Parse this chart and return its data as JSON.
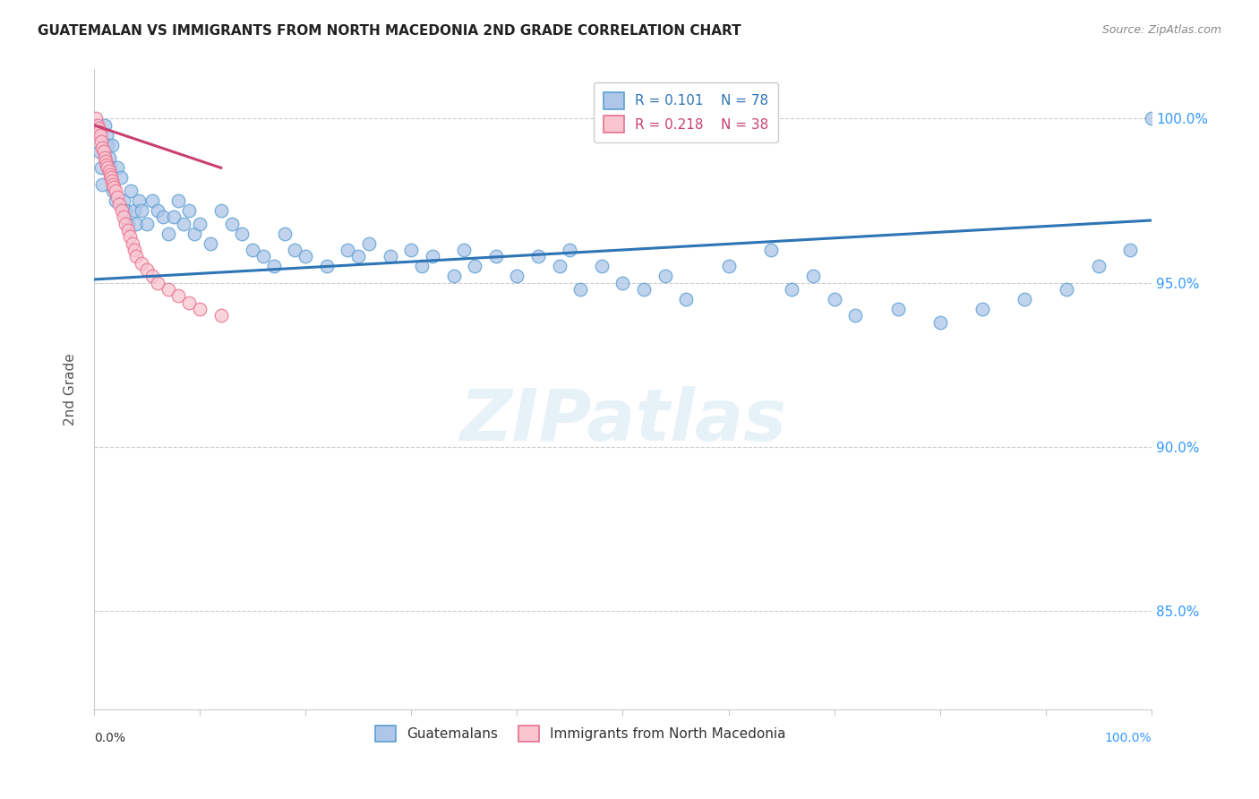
{
  "title": "GUATEMALAN VS IMMIGRANTS FROM NORTH MACEDONIA 2ND GRADE CORRELATION CHART",
  "source": "Source: ZipAtlas.com",
  "ylabel": "2nd Grade",
  "legend_blue_R": "0.101",
  "legend_blue_N": "78",
  "legend_pink_R": "0.218",
  "legend_pink_N": "38",
  "legend_label_blue": "Guatemalans",
  "legend_label_pink": "Immigrants from North Macedonia",
  "blue_color": "#aec6e8",
  "blue_edge_color": "#5a9fd4",
  "pink_color": "#f9c6d0",
  "pink_edge_color": "#e87090",
  "blue_line_color": "#2e75b6",
  "pink_line_color": "#c94070",
  "watermark_text": "ZIPatlas",
  "ytick_labels": [
    "100.0%",
    "95.0%",
    "90.0%",
    "85.0%"
  ],
  "ytick_values": [
    1.0,
    0.95,
    0.9,
    0.85
  ],
  "xlim": [
    0.0,
    1.0
  ],
  "ylim": [
    0.82,
    1.015
  ],
  "blue_scatter_x": [
    0.005,
    0.007,
    0.008,
    0.01,
    0.012,
    0.013,
    0.014,
    0.015,
    0.017,
    0.018,
    0.02,
    0.022,
    0.025,
    0.028,
    0.03,
    0.032,
    0.035,
    0.038,
    0.04,
    0.042,
    0.045,
    0.05,
    0.055,
    0.06,
    0.065,
    0.07,
    0.075,
    0.08,
    0.085,
    0.09,
    0.095,
    0.1,
    0.11,
    0.12,
    0.13,
    0.14,
    0.15,
    0.16,
    0.17,
    0.18,
    0.19,
    0.2,
    0.22,
    0.24,
    0.25,
    0.26,
    0.28,
    0.3,
    0.31,
    0.32,
    0.34,
    0.35,
    0.36,
    0.38,
    0.4,
    0.42,
    0.44,
    0.45,
    0.46,
    0.48,
    0.5,
    0.52,
    0.54,
    0.56,
    0.6,
    0.64,
    0.66,
    0.68,
    0.7,
    0.72,
    0.76,
    0.8,
    0.84,
    0.88,
    0.92,
    0.95,
    0.98,
    1.0
  ],
  "blue_scatter_y": [
    0.99,
    0.985,
    0.98,
    0.998,
    0.995,
    0.992,
    0.988,
    0.985,
    0.992,
    0.978,
    0.975,
    0.985,
    0.982,
    0.975,
    0.972,
    0.968,
    0.978,
    0.972,
    0.968,
    0.975,
    0.972,
    0.968,
    0.975,
    0.972,
    0.97,
    0.965,
    0.97,
    0.975,
    0.968,
    0.972,
    0.965,
    0.968,
    0.962,
    0.972,
    0.968,
    0.965,
    0.96,
    0.958,
    0.955,
    0.965,
    0.96,
    0.958,
    0.955,
    0.96,
    0.958,
    0.962,
    0.958,
    0.96,
    0.955,
    0.958,
    0.952,
    0.96,
    0.955,
    0.958,
    0.952,
    0.958,
    0.955,
    0.96,
    0.948,
    0.955,
    0.95,
    0.948,
    0.952,
    0.945,
    0.955,
    0.96,
    0.948,
    0.952,
    0.945,
    0.94,
    0.942,
    0.938,
    0.942,
    0.945,
    0.948,
    0.955,
    0.96,
    1.0
  ],
  "pink_scatter_x": [
    0.002,
    0.003,
    0.004,
    0.005,
    0.006,
    0.007,
    0.008,
    0.009,
    0.01,
    0.011,
    0.012,
    0.013,
    0.014,
    0.015,
    0.016,
    0.017,
    0.018,
    0.019,
    0.02,
    0.022,
    0.024,
    0.026,
    0.028,
    0.03,
    0.032,
    0.034,
    0.036,
    0.038,
    0.04,
    0.045,
    0.05,
    0.055,
    0.06,
    0.07,
    0.08,
    0.09,
    0.1,
    0.12
  ],
  "pink_scatter_y": [
    1.0,
    0.998,
    0.997,
    0.996,
    0.995,
    0.993,
    0.991,
    0.99,
    0.988,
    0.987,
    0.986,
    0.985,
    0.984,
    0.983,
    0.982,
    0.981,
    0.98,
    0.979,
    0.978,
    0.976,
    0.974,
    0.972,
    0.97,
    0.968,
    0.966,
    0.964,
    0.962,
    0.96,
    0.958,
    0.956,
    0.954,
    0.952,
    0.95,
    0.948,
    0.946,
    0.944,
    0.942,
    0.94
  ],
  "blue_line_x": [
    0.0,
    1.0
  ],
  "blue_line_y": [
    0.951,
    0.969
  ],
  "pink_line_x": [
    0.0,
    0.12
  ],
  "pink_line_y": [
    0.998,
    0.985
  ]
}
